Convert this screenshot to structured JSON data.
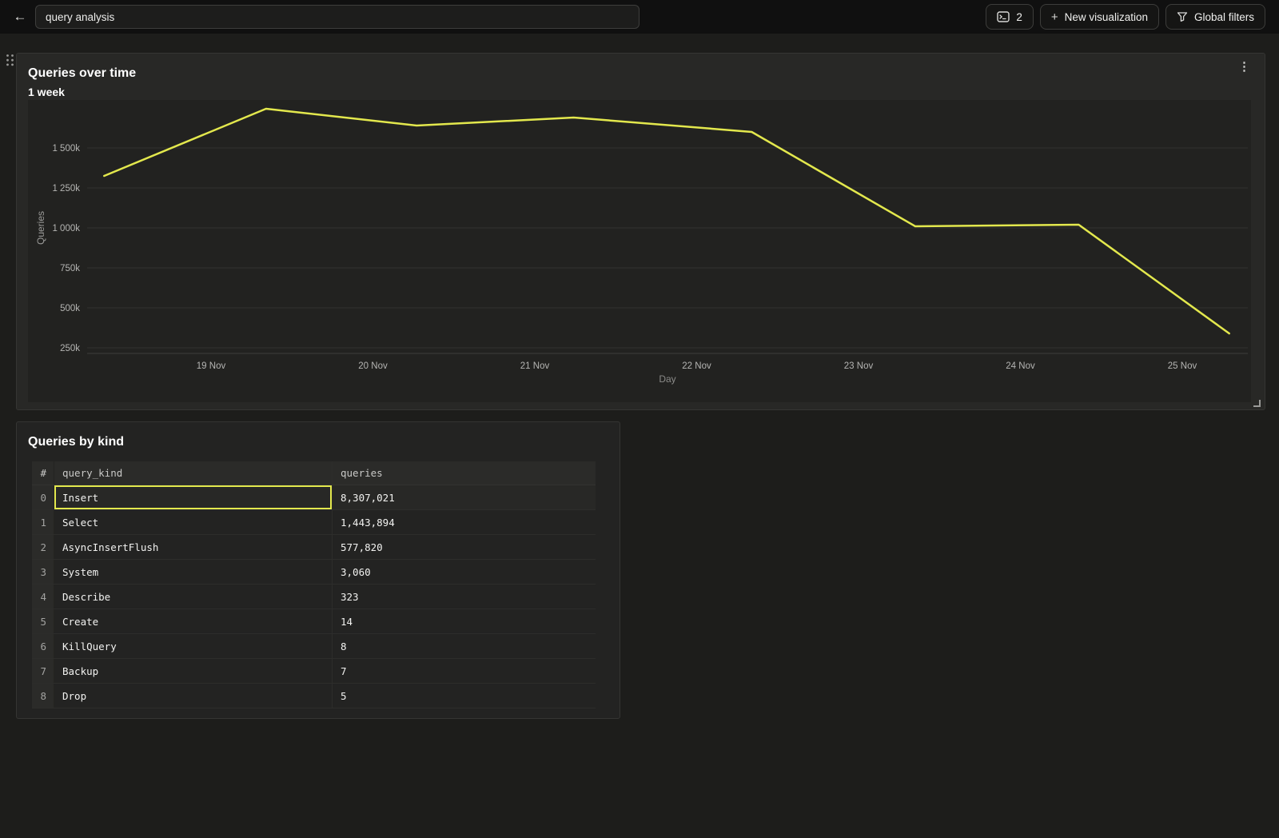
{
  "topbar": {
    "title_value": "query analysis",
    "queries_count": "2",
    "new_viz_label": "New visualization",
    "global_filters_label": "Global filters"
  },
  "icons": {
    "back": "←",
    "kebab": "⋮",
    "plus": "+",
    "terminal": "terminal-prompt",
    "filter": "funnel",
    "drag": "grip-dots",
    "resize": "corner-bracket"
  },
  "colors": {
    "accent_yellow": "#e3e84d",
    "panel_bg": "#282826",
    "page_bg": "#1d1d1b",
    "grid_line": "#31312f",
    "tick_text": "#b5b5b3"
  },
  "chart_data": {
    "type": "line",
    "title": "Queries over time",
    "subtitle": "1 week",
    "xlabel": "Day",
    "ylabel": "Queries",
    "legend": "none",
    "grid": "horizontal",
    "ylim_k": [
      190,
      1800
    ],
    "y_ticks": [
      {
        "label": "1 500k",
        "value_k": 1500
      },
      {
        "label": "1 250k",
        "value_k": 1250
      },
      {
        "label": "1 000k",
        "value_k": 1000
      },
      {
        "label": "750k",
        "value_k": 750
      },
      {
        "label": "500k",
        "value_k": 500
      },
      {
        "label": "250k",
        "value_k": 250
      }
    ],
    "x_ticks": [
      {
        "label": "19 Nov",
        "day": 19
      },
      {
        "label": "20 Nov",
        "day": 20
      },
      {
        "label": "21 Nov",
        "day": 21
      },
      {
        "label": "22 Nov",
        "day": 22
      },
      {
        "label": "23 Nov",
        "day": 23
      },
      {
        "label": "24 Nov",
        "day": 24
      },
      {
        "label": "25 Nov",
        "day": 25
      }
    ],
    "series": [
      {
        "name": "Queries",
        "color": "#e3e84d",
        "points": [
          {
            "day": 18.34,
            "value_k": 1325
          },
          {
            "day": 19.34,
            "value_k": 1745
          },
          {
            "day": 20.27,
            "value_k": 1640
          },
          {
            "day": 21.24,
            "value_k": 1690
          },
          {
            "day": 22.34,
            "value_k": 1600
          },
          {
            "day": 23.35,
            "value_k": 1010
          },
          {
            "day": 24.36,
            "value_k": 1020
          },
          {
            "day": 25.29,
            "value_k": 340
          }
        ]
      }
    ]
  },
  "table": {
    "title": "Queries by kind",
    "columns": [
      "#",
      "query_kind",
      "queries"
    ],
    "rows": [
      {
        "idx": "0",
        "query_kind": "Insert",
        "queries": "8,307,021",
        "selected": true
      },
      {
        "idx": "1",
        "query_kind": "Select",
        "queries": "1,443,894",
        "selected": false
      },
      {
        "idx": "2",
        "query_kind": "AsyncInsertFlush",
        "queries": "577,820",
        "selected": false
      },
      {
        "idx": "3",
        "query_kind": "System",
        "queries": "3,060",
        "selected": false
      },
      {
        "idx": "4",
        "query_kind": "Describe",
        "queries": "323",
        "selected": false
      },
      {
        "idx": "5",
        "query_kind": "Create",
        "queries": "14",
        "selected": false
      },
      {
        "idx": "6",
        "query_kind": "KillQuery",
        "queries": "8",
        "selected": false
      },
      {
        "idx": "7",
        "query_kind": "Backup",
        "queries": "7",
        "selected": false
      },
      {
        "idx": "8",
        "query_kind": "Drop",
        "queries": "5",
        "selected": false
      }
    ]
  }
}
